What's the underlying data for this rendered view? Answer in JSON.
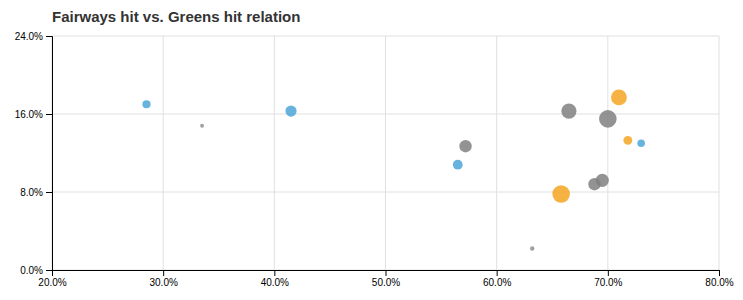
{
  "chart_data": {
    "type": "scatter",
    "title": "Fairways hit vs. Greens hit relation",
    "x": [
      0.285,
      0.335,
      0.415,
      0.565,
      0.572,
      0.632,
      0.658,
      0.665,
      0.688,
      0.695,
      0.7,
      0.71,
      0.718,
      0.73
    ],
    "values": [
      0.17,
      0.148,
      0.163,
      0.108,
      0.127,
      0.022,
      0.078,
      0.163,
      0.088,
      0.092,
      0.155,
      0.177,
      0.133,
      0.13
    ],
    "sizes": [
      35,
      8,
      65,
      50,
      80,
      10,
      160,
      120,
      80,
      90,
      160,
      130,
      40,
      30
    ],
    "colors": [
      "#4da6d8",
      "#909090",
      "#4da6d8",
      "#4da6d8",
      "#808080",
      "#909090",
      "#f5a623",
      "#808080",
      "#808080",
      "#808080",
      "#808080",
      "#f5a623",
      "#f5a623",
      "#4da6d8"
    ],
    "xlim": [
      0.2,
      0.8
    ],
    "ylim": [
      0.0,
      0.24
    ],
    "xticks": [
      {
        "value": 0.2,
        "label": "20.0%"
      },
      {
        "value": 0.3,
        "label": "30.0%"
      },
      {
        "value": 0.4,
        "label": "40.0%"
      },
      {
        "value": 0.5,
        "label": "50.0%"
      },
      {
        "value": 0.6,
        "label": "60.0%"
      },
      {
        "value": 0.7,
        "label": "70.0%"
      },
      {
        "value": 0.8,
        "label": "80.0%"
      }
    ],
    "yticks": [
      {
        "value": 0.0,
        "label": "0.0%"
      },
      {
        "value": 0.08,
        "label": "8.0%"
      },
      {
        "value": 0.16,
        "label": "16.0%"
      },
      {
        "value": 0.24,
        "label": "24.0%"
      }
    ],
    "grid": true
  }
}
